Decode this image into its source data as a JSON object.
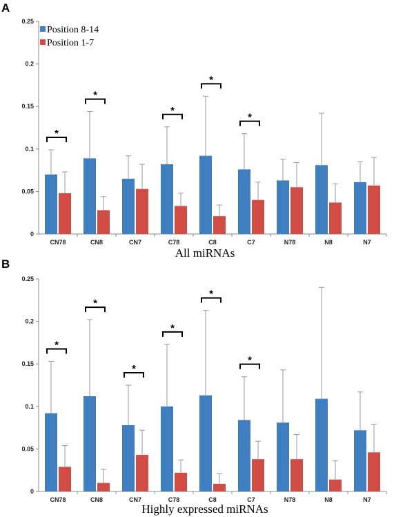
{
  "colors": {
    "series1": "#3f7fc1",
    "series2": "#d14c45",
    "axis": "#888888",
    "errorbar": "#9a9a9a"
  },
  "legend": [
    {
      "name": "Position 8-14"
    },
    {
      "name": "Position 1-7"
    }
  ],
  "chart_data": [
    {
      "panel": "A",
      "type": "bar",
      "title": "",
      "xlabel": "All miRNAs",
      "ylabel": "",
      "ylim": [
        0,
        0.25
      ],
      "yticks": [
        "0",
        "0.05",
        "0.1",
        "0.15",
        "0.2",
        "0.25"
      ],
      "tick_values": [
        0,
        0.05,
        0.1,
        0.15,
        0.2,
        0.25
      ],
      "legend_position": "top-left",
      "categories": [
        "CN78",
        "CN8",
        "CN7",
        "C78",
        "C8",
        "C7",
        "N78",
        "N8",
        "N7"
      ],
      "series": [
        {
          "name": "Position 8-14",
          "values": [
            0.07,
            0.089,
            0.065,
            0.082,
            0.092,
            0.076,
            0.063,
            0.081,
            0.061
          ],
          "errors": [
            0.029,
            0.055,
            0.027,
            0.044,
            0.07,
            0.042,
            0.025,
            0.061,
            0.024
          ]
        },
        {
          "name": "Position 1-7",
          "values": [
            0.048,
            0.028,
            0.053,
            0.033,
            0.021,
            0.04,
            0.055,
            0.037,
            0.057
          ],
          "errors": [
            0.025,
            0.016,
            0.029,
            0.015,
            0.013,
            0.021,
            0.029,
            0.022,
            0.033
          ]
        }
      ],
      "significant": [
        "*",
        "*",
        "",
        "*",
        "*",
        "*",
        "",
        "",
        ""
      ]
    },
    {
      "panel": "B",
      "type": "bar",
      "title": "",
      "xlabel": "Highly expressed miRNAs",
      "ylabel": "",
      "ylim": [
        0,
        0.25
      ],
      "yticks": [
        "0",
        "0.05",
        "0.1",
        "0.15",
        "0.2",
        "0.25"
      ],
      "tick_values": [
        0,
        0.05,
        0.1,
        0.15,
        0.2,
        0.25
      ],
      "legend_position": "none",
      "categories": [
        "CN78",
        "CN8",
        "CN7",
        "C78",
        "C8",
        "C7",
        "N78",
        "N8",
        "N7"
      ],
      "series": [
        {
          "name": "Position 8-14",
          "values": [
            0.092,
            0.112,
            0.078,
            0.1,
            0.113,
            0.084,
            0.081,
            0.109,
            0.072
          ],
          "errors": [
            0.061,
            0.09,
            0.047,
            0.073,
            0.1,
            0.051,
            0.062,
            0.131,
            0.045
          ]
        },
        {
          "name": "Position 1-7",
          "values": [
            0.029,
            0.01,
            0.043,
            0.022,
            0.009,
            0.038,
            0.038,
            0.014,
            0.046
          ],
          "errors": [
            0.025,
            0.016,
            0.029,
            0.015,
            0.012,
            0.021,
            0.029,
            0.022,
            0.033
          ]
        }
      ],
      "significant": [
        "*",
        "*",
        "*",
        "*",
        "*",
        "*",
        "",
        "",
        ""
      ]
    }
  ]
}
